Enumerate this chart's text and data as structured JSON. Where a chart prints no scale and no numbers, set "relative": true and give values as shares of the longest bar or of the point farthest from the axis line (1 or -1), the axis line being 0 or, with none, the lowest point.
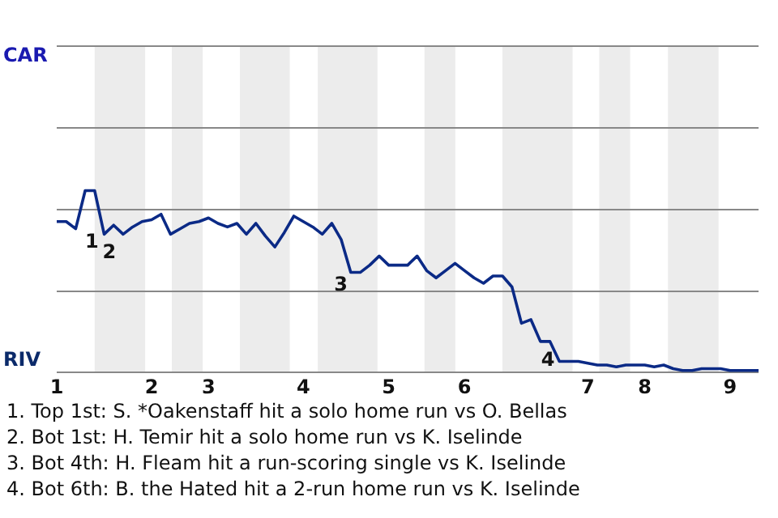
{
  "chart_data": {
    "type": "line",
    "relative": true,
    "categories": [
      "1",
      null,
      null,
      null,
      null,
      null,
      null,
      null,
      null,
      null,
      "2",
      null,
      null,
      null,
      null,
      null,
      "3",
      null,
      null,
      null,
      null,
      null,
      null,
      null,
      null,
      null,
      "4",
      null,
      null,
      null,
      null,
      null,
      null,
      null,
      null,
      "5",
      null,
      null,
      null,
      null,
      null,
      null,
      null,
      "6",
      null,
      null,
      null,
      null,
      null,
      null,
      null,
      null,
      null,
      null,
      null,
      null,
      "7",
      null,
      null,
      null,
      null,
      null,
      "8",
      null,
      null,
      null,
      null,
      null,
      null,
      null,
      null,
      "9",
      null,
      null,
      null
    ],
    "marker": "none",
    "line_style": "solid",
    "series": [
      {
        "color": "#0b2a86",
        "values": [
          0.83,
          0.83,
          0.79,
          1,
          1,
          0.76,
          0.81,
          0.76,
          0.8,
          0.83,
          0.84,
          0.87,
          0.76,
          0.79,
          0.82,
          0.83,
          0.85,
          0.82,
          0.8,
          0.82,
          0.76,
          0.82,
          0.75,
          0.69,
          0.77,
          0.86,
          0.83,
          0.8,
          0.76,
          0.82,
          0.73,
          0.55,
          0.55,
          0.59,
          0.64,
          0.59,
          0.59,
          0.59,
          0.64,
          0.56,
          0.52,
          0.56,
          0.6,
          0.56,
          0.52,
          0.49,
          0.53,
          0.53,
          0.47,
          0.27,
          0.29,
          0.17,
          0.17,
          0.06,
          0.06,
          0.06,
          0.05,
          0.04,
          0.04,
          0.03,
          0.04,
          0.04,
          0.04,
          0.03,
          0.04,
          0.02,
          0.01,
          0.01,
          0.02,
          0.02,
          0.02,
          0.01,
          0.01,
          0.01,
          0.01
        ]
      }
    ],
    "annotations": [
      "CAR",
      "RIV",
      "1",
      "2",
      "3",
      "4",
      "1. Top 1st: S. *Oakenstaff hit a solo home run vs O. Bellas",
      "2. Bot 1st: H. Temir hit a solo home run vs K. Iselinde",
      "3. Bot 4th: H. Fleam hit a run-scoring single vs K. Iselinde",
      "4. Bot 6th: B. the Hated hit a 2-run home run vs K. Iselinde"
    ]
  }
}
